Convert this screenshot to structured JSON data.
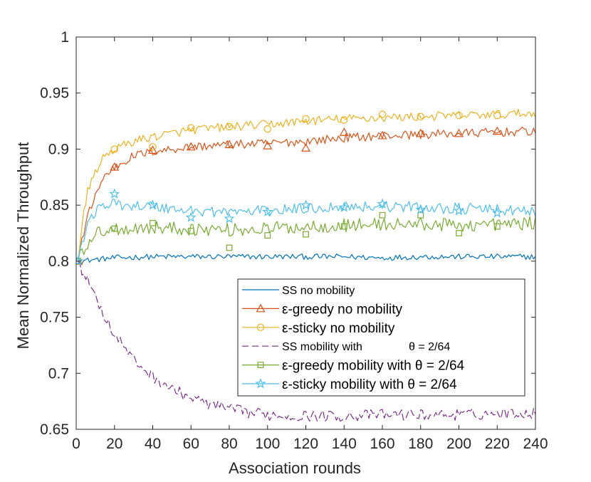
{
  "chart_data": {
    "type": "line",
    "title": "",
    "xlabel": "Association rounds",
    "ylabel": "Mean Normalized Throughput",
    "xlim": [
      0,
      240
    ],
    "ylim": [
      0.65,
      1
    ],
    "xticks": [
      0,
      20,
      40,
      60,
      80,
      100,
      120,
      140,
      160,
      180,
      200,
      220,
      240
    ],
    "yticks": [
      0.65,
      0.7,
      0.75,
      0.8,
      0.85,
      0.9,
      0.95,
      1
    ],
    "ytick_labels": [
      "0.65",
      "0.7",
      "0.75",
      "0.8",
      "0.85",
      "0.9",
      "0.95",
      "1"
    ],
    "grid": false,
    "legend_position": "center-right",
    "x_marker_points": [
      1,
      20,
      40,
      60,
      80,
      100,
      120,
      140,
      160,
      180,
      200,
      220
    ],
    "series": [
      {
        "key": "ss-no-mobility",
        "name": "SS no mobility",
        "color": "#0072BD",
        "marker": "none",
        "dash": "solid",
        "x": [
          1,
          20,
          40,
          60,
          80,
          100,
          120,
          140,
          160,
          180,
          200,
          220,
          240
        ],
        "values": [
          0.8,
          0.803,
          0.804,
          0.804,
          0.804,
          0.804,
          0.804,
          0.804,
          0.803,
          0.804,
          0.804,
          0.804,
          0.804
        ],
        "noise": 0.0025
      },
      {
        "key": "greedy-no-mobility",
        "name": "ε-greedy no mobility",
        "color": "#D95319",
        "marker": "triangle",
        "dash": "solid",
        "x": [
          1,
          3,
          6,
          10,
          15,
          20,
          30,
          40,
          50,
          60,
          80,
          100,
          120,
          140,
          160,
          180,
          200,
          220,
          240
        ],
        "values": [
          0.8,
          0.818,
          0.84,
          0.86,
          0.876,
          0.884,
          0.894,
          0.898,
          0.9,
          0.902,
          0.904,
          0.905,
          0.907,
          0.91,
          0.912,
          0.913,
          0.914,
          0.915,
          0.916
        ],
        "marker_values": [
          0.8,
          0.884,
          0.899,
          0.902,
          0.904,
          0.903,
          0.901,
          0.915,
          0.912,
          0.914,
          0.914,
          0.916
        ],
        "noise": 0.004
      },
      {
        "key": "sticky-no-mobility",
        "name": "ε-sticky no mobility",
        "color": "#EDB120",
        "marker": "circle",
        "dash": "solid",
        "x": [
          1,
          3,
          6,
          10,
          15,
          20,
          30,
          40,
          50,
          60,
          80,
          100,
          120,
          140,
          160,
          180,
          200,
          220,
          240
        ],
        "values": [
          0.8,
          0.832,
          0.862,
          0.88,
          0.894,
          0.9,
          0.907,
          0.911,
          0.914,
          0.917,
          0.92,
          0.922,
          0.925,
          0.927,
          0.928,
          0.929,
          0.93,
          0.931,
          0.932
        ],
        "marker_values": [
          0.8,
          0.9,
          0.902,
          0.919,
          0.92,
          0.918,
          0.927,
          0.926,
          0.931,
          0.929,
          0.93,
          0.93
        ],
        "noise": 0.004
      },
      {
        "key": "ss-mobility",
        "name": "SS mobility with",
        "name_suffix": "θ = 2/64",
        "color": "#7E2F8E",
        "marker": "none",
        "dash": "dashed",
        "x": [
          1,
          5,
          10,
          15,
          20,
          30,
          40,
          50,
          60,
          70,
          80,
          90,
          100,
          110,
          120,
          140,
          160,
          180,
          200,
          220,
          240
        ],
        "values": [
          0.8,
          0.785,
          0.77,
          0.75,
          0.735,
          0.712,
          0.697,
          0.686,
          0.678,
          0.672,
          0.668,
          0.665,
          0.663,
          0.662,
          0.662,
          0.662,
          0.663,
          0.663,
          0.663,
          0.664,
          0.665
        ],
        "noise": 0.005
      },
      {
        "key": "greedy-mobility",
        "name": "ε-greedy mobility with θ = 2/64",
        "color": "#77AC30",
        "marker": "square",
        "dash": "solid",
        "x": [
          1,
          5,
          10,
          15,
          20,
          40,
          60,
          80,
          100,
          120,
          140,
          160,
          180,
          200,
          220,
          240
        ],
        "values": [
          0.8,
          0.815,
          0.824,
          0.828,
          0.829,
          0.83,
          0.829,
          0.828,
          0.829,
          0.831,
          0.832,
          0.833,
          0.833,
          0.832,
          0.833,
          0.834
        ],
        "marker_values": [
          0.8,
          0.829,
          0.834,
          0.827,
          0.812,
          0.823,
          0.824,
          0.831,
          0.841,
          0.841,
          0.825,
          0.831
        ],
        "noise": 0.006
      },
      {
        "key": "sticky-mobility",
        "name": "ε-sticky mobility with θ = 2/64",
        "color": "#4DBEEE",
        "marker": "star",
        "dash": "solid",
        "x": [
          1,
          5,
          10,
          15,
          20,
          40,
          60,
          80,
          100,
          120,
          140,
          160,
          180,
          200,
          220,
          240
        ],
        "values": [
          0.8,
          0.83,
          0.845,
          0.85,
          0.851,
          0.849,
          0.845,
          0.844,
          0.845,
          0.847,
          0.849,
          0.849,
          0.848,
          0.847,
          0.846,
          0.844
        ],
        "marker_values": [
          0.8,
          0.86,
          0.85,
          0.839,
          0.838,
          0.844,
          0.85,
          0.848,
          0.851,
          0.846,
          0.845,
          0.843
        ],
        "noise": 0.005
      }
    ]
  }
}
